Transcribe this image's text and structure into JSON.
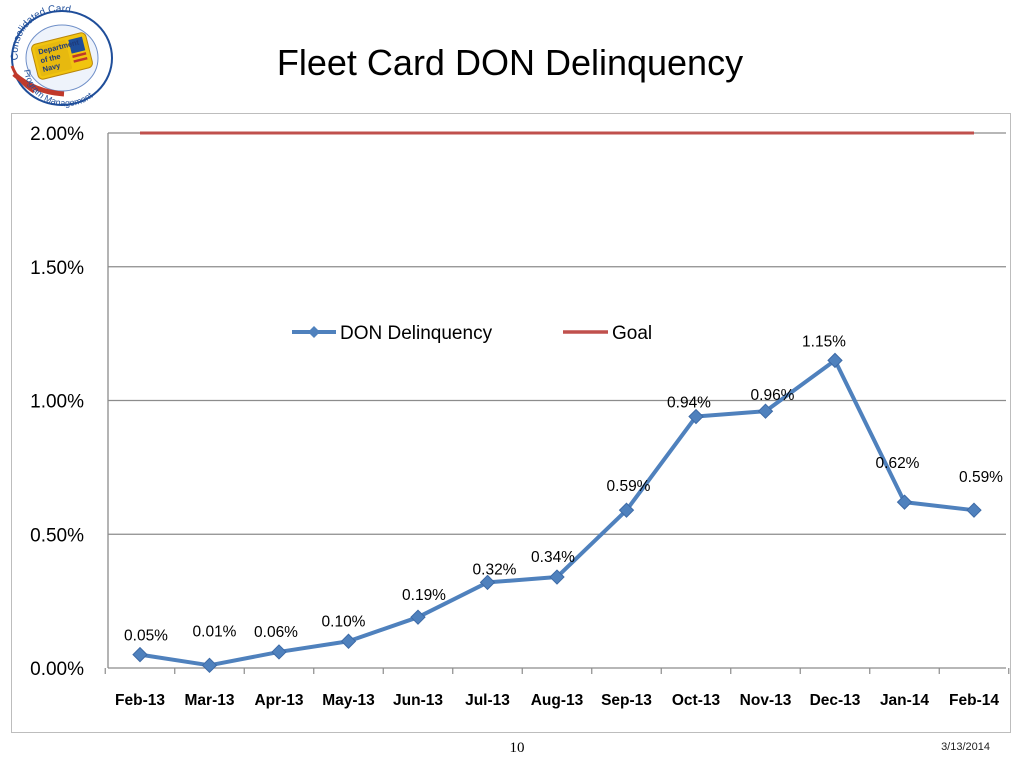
{
  "logo": {
    "ring_text_top": "Consolidated Card",
    "ring_text_bottom": "Program Management",
    "card_text": "Department of the Navy"
  },
  "title": "Fleet Card DON Delinquency",
  "footer": {
    "page_number": "10",
    "date": "3/13/2014"
  },
  "chart_data": {
    "type": "line",
    "title": "Fleet Card DON Delinquency",
    "xlabel": "",
    "ylabel": "",
    "categories": [
      "Feb-13",
      "Mar-13",
      "Apr-13",
      "May-13",
      "Jun-13",
      "Jul-13",
      "Aug-13",
      "Sep-13",
      "Oct-13",
      "Nov-13",
      "Dec-13",
      "Jan-14",
      "Feb-14"
    ],
    "series": [
      {
        "name": "DON Delinquency",
        "values": [
          0.05,
          0.01,
          0.06,
          0.1,
          0.19,
          0.32,
          0.34,
          0.59,
          0.94,
          0.96,
          1.15,
          0.62,
          0.59
        ],
        "labels": [
          "0.05%",
          "0.01%",
          "0.06%",
          "0.10%",
          "0.19%",
          "0.32%",
          "0.34%",
          "0.59%",
          "0.94%",
          "0.96%",
          "1.15%",
          "0.62%",
          "0.59%"
        ],
        "color": "#4f81bd",
        "marker": "diamond"
      },
      {
        "name": "Goal",
        "values": [
          2.0,
          2.0,
          2.0,
          2.0,
          2.0,
          2.0,
          2.0,
          2.0,
          2.0,
          2.0,
          2.0,
          2.0,
          2.0
        ],
        "color": "#c0504d",
        "marker": "none"
      }
    ],
    "ylim": [
      0,
      2.0
    ],
    "yticks": [
      0,
      0.5,
      1.0,
      1.5,
      2.0
    ],
    "ytick_labels": [
      "0.00%",
      "0.50%",
      "1.00%",
      "1.50%",
      "2.00%"
    ],
    "grid": true,
    "legend_position": "upper-center inside plot"
  }
}
